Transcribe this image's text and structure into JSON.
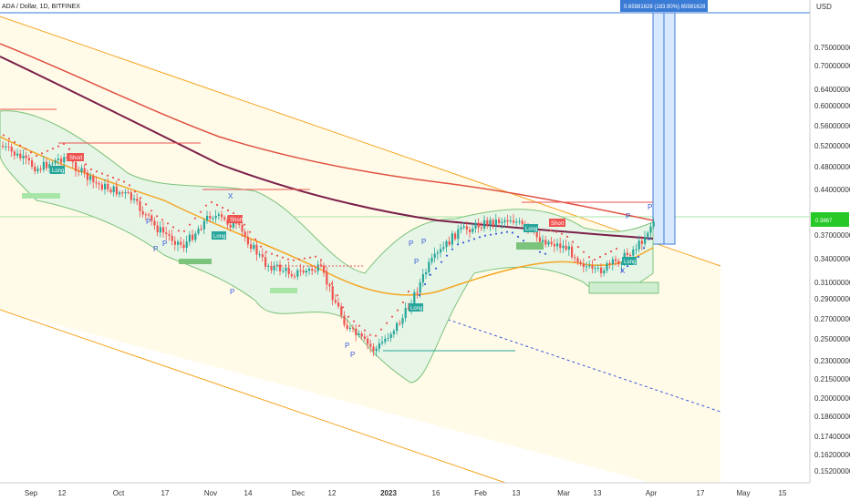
{
  "chart_data": {
    "type": "candlestick",
    "title": "ADA / Dollar, 1D, BITFINEX",
    "price_unit": "USD",
    "y_ticks": [
      0.75,
      0.7,
      0.64,
      0.6,
      0.56,
      0.52,
      0.48,
      0.44,
      0.37,
      0.34,
      0.31,
      0.29,
      0.27,
      0.25,
      0.23,
      0.215,
      0.2,
      0.186,
      0.174,
      0.162,
      0.152
    ],
    "y_tick_labels": [
      "0.75000000",
      "0.70000000",
      "0.64000000",
      "0.60000000",
      "0.56000000",
      "0.52000000",
      "0.48000000",
      "0.44000000",
      "0.37000000",
      "0.34000000",
      "0.31000000",
      "0.29000000",
      "0.27000000",
      "0.25000000",
      "0.23000000",
      "0.21500000",
      "0.20000000",
      "0.18600000",
      "0.17400000",
      "0.16200000",
      "0.15200000"
    ],
    "x_tick_labels": [
      "Sep",
      "12",
      "Oct",
      "17",
      "Nov",
      "14",
      "Dec",
      "12",
      "2023",
      "16",
      "Feb",
      "13",
      "Mar",
      "13",
      "Apr",
      "17",
      "May",
      "15"
    ],
    "current_price_label": "0.3867",
    "measure_label": "0.65981628 (183.90%) 65981628",
    "badges": [
      {
        "text": "Short",
        "color": "#ef5350"
      },
      {
        "text": "Long",
        "color": "#26a69a"
      },
      {
        "text": "Short",
        "color": "#ef5350"
      },
      {
        "text": "Long",
        "color": "#26a69a"
      },
      {
        "text": "Long",
        "color": "#26a69a"
      },
      {
        "text": "Long",
        "color": "#26a69a"
      },
      {
        "text": "Short",
        "color": "#ef5350"
      },
      {
        "text": "Long",
        "color": "#26a69a"
      }
    ],
    "markers": [
      "P",
      "X"
    ],
    "colors": {
      "up": "#26a69a",
      "down": "#ef5350",
      "ma_long": "#7b1f4a",
      "ma_mid": "#e05040",
      "ma_short": "#f5a623",
      "channel": "#f5a623",
      "band": "#7cc37c",
      "dots": "#3a5bd9"
    }
  }
}
